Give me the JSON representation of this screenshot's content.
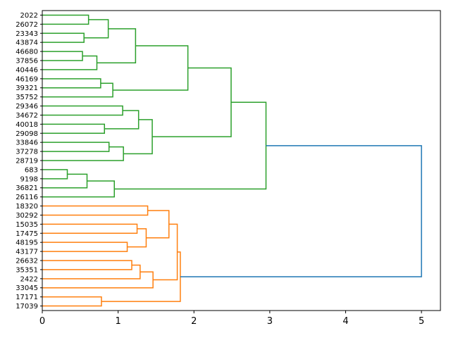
{
  "chart_data": {
    "type": "dendrogram",
    "title": "",
    "xlabel": "",
    "ylabel": "",
    "xlim": [
      0,
      5.25
    ],
    "x_ticks": [
      "0",
      "1",
      "2",
      "3",
      "4",
      "5"
    ],
    "orientation": "left",
    "leaves": [
      "2022",
      "26072",
      "23343",
      "43874",
      "46680",
      "37856",
      "40446",
      "46169",
      "39321",
      "35752",
      "29346",
      "34672",
      "40018",
      "29098",
      "33846",
      "37278",
      "28719",
      "683",
      "9198",
      "36821",
      "26116",
      "18320",
      "30292",
      "15035",
      "17475",
      "48195",
      "43177",
      "26632",
      "35351",
      "2422",
      "33045",
      "17171",
      "17039"
    ],
    "colors": {
      "green": "#2ca02c",
      "orange": "#ff7f0e",
      "blue": "#1f77b4"
    },
    "linkage": [
      [
        0,
        1,
        0.61,
        "green"
      ],
      [
        2,
        3,
        0.55,
        "green"
      ],
      [
        33,
        34,
        0.87,
        "green"
      ],
      [
        4,
        5,
        0.53,
        "green"
      ],
      [
        36,
        6,
        0.72,
        "green"
      ],
      [
        35,
        37,
        1.23,
        "green"
      ],
      [
        7,
        8,
        0.77,
        "green"
      ],
      [
        39,
        9,
        0.93,
        "green"
      ],
      [
        38,
        40,
        1.92,
        "green"
      ],
      [
        10,
        11,
        1.06,
        "green"
      ],
      [
        12,
        13,
        0.82,
        "green"
      ],
      [
        42,
        43,
        1.27,
        "green"
      ],
      [
        14,
        15,
        0.88,
        "green"
      ],
      [
        45,
        16,
        1.07,
        "green"
      ],
      [
        44,
        46,
        1.45,
        "green"
      ],
      [
        41,
        47,
        2.49,
        "green"
      ],
      [
        17,
        18,
        0.33,
        "green"
      ],
      [
        49,
        19,
        0.59,
        "green"
      ],
      [
        50,
        20,
        0.95,
        "green"
      ],
      [
        48,
        51,
        2.95,
        "green"
      ],
      [
        21,
        22,
        1.39,
        "orange"
      ],
      [
        23,
        24,
        1.25,
        "orange"
      ],
      [
        25,
        26,
        1.12,
        "orange"
      ],
      [
        54,
        55,
        1.37,
        "orange"
      ],
      [
        53,
        56,
        1.67,
        "orange"
      ],
      [
        27,
        28,
        1.18,
        "orange"
      ],
      [
        58,
        29,
        1.29,
        "orange"
      ],
      [
        59,
        30,
        1.46,
        "orange"
      ],
      [
        57,
        60,
        1.78,
        "orange"
      ],
      [
        31,
        32,
        0.78,
        "orange"
      ],
      [
        61,
        62,
        1.82,
        "orange"
      ],
      [
        52,
        63,
        5.0,
        "blue"
      ]
    ]
  }
}
